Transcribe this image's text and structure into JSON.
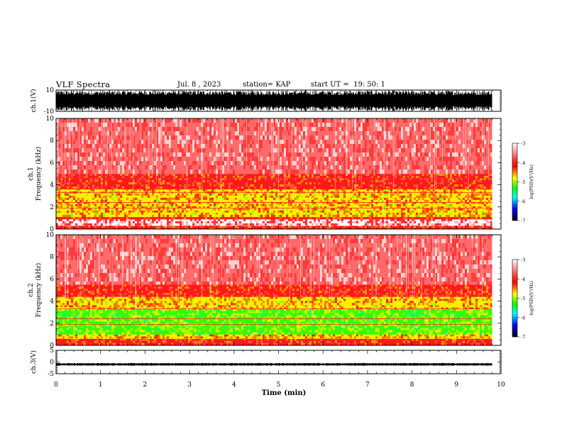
{
  "header": {
    "title": "VLF Spectra",
    "date": "Jul. 8 , 2023",
    "station": "station= KAP",
    "start": "start UT =  19: 50: 1"
  },
  "chart_data": [
    {
      "type": "line",
      "name": "ch1-waveform",
      "ylabel": "ch.1(V)",
      "ylim": [
        -10,
        10
      ],
      "yticks": [
        "10",
        "-10"
      ],
      "xlim": [
        0,
        10
      ],
      "data_extent_min": 9.8,
      "trace": "dense noise filling most of the range"
    },
    {
      "type": "heatmap",
      "name": "ch1-spectrogram",
      "ylabel": "ch.1\nFrequency (kHz)",
      "ylabel_top": "ch.1",
      "ylabel_main": "Frequency (kHz)",
      "ylim": [
        0,
        10
      ],
      "yticks": [
        "0",
        "2",
        "4",
        "6",
        "8",
        "10"
      ],
      "xlim": [
        0,
        10
      ],
      "data_extent_min": 9.8,
      "bands_khz": [
        {
          "from": 0.0,
          "to": 0.3,
          "level": "red"
        },
        {
          "from": 0.3,
          "to": 0.9,
          "level": "white-lines"
        },
        {
          "from": 0.9,
          "to": 1.1,
          "level": "red"
        },
        {
          "from": 1.1,
          "to": 3.6,
          "level": "yellow"
        },
        {
          "from": 3.6,
          "to": 5.0,
          "level": "red"
        },
        {
          "from": 5.0,
          "to": 10.0,
          "level": "light-red"
        }
      ]
    },
    {
      "type": "heatmap",
      "name": "ch2-spectrogram",
      "ylabel": "ch.2\nFrequency (kHz)",
      "ylabel_top": "ch.2",
      "ylabel_main": "Frequency (kHz)",
      "ylim": [
        0,
        10
      ],
      "yticks": [
        "0",
        "2",
        "4",
        "6",
        "8",
        "10"
      ],
      "xlim": [
        0,
        10
      ],
      "data_extent_min": 9.8,
      "bands_khz": [
        {
          "from": 0.0,
          "to": 0.6,
          "level": "red"
        },
        {
          "from": 0.6,
          "to": 1.0,
          "level": "yellow"
        },
        {
          "from": 1.0,
          "to": 3.3,
          "level": "green"
        },
        {
          "from": 3.3,
          "to": 4.4,
          "level": "yellow"
        },
        {
          "from": 4.4,
          "to": 5.5,
          "level": "red"
        },
        {
          "from": 5.5,
          "to": 10.0,
          "level": "light-red"
        }
      ]
    },
    {
      "type": "line",
      "name": "ch3-waveform",
      "ylabel": "ch.3(V)",
      "ylim": [
        -5,
        5
      ],
      "yticks": [
        "5",
        "0",
        "-5"
      ],
      "xlim": [
        0,
        10
      ],
      "data_extent_min": 9.8,
      "trace": "narrow band around -1 V"
    }
  ],
  "xaxis": {
    "label": "Time (min)",
    "ticks": [
      "0",
      "1",
      "2",
      "3",
      "4",
      "5",
      "6",
      "7",
      "8",
      "9",
      "10"
    ]
  },
  "colorbar": {
    "label": "log(PSD)(V²/Hz)",
    "range": [
      -7,
      -3
    ],
    "ticks": [
      "-3",
      "-4",
      "-5",
      "-6",
      "-7"
    ],
    "stops": [
      "#ffffff",
      "#ff0000",
      "#ffff00",
      "#00ff00",
      "#00ffff",
      "#0000ff",
      "#000000"
    ]
  }
}
